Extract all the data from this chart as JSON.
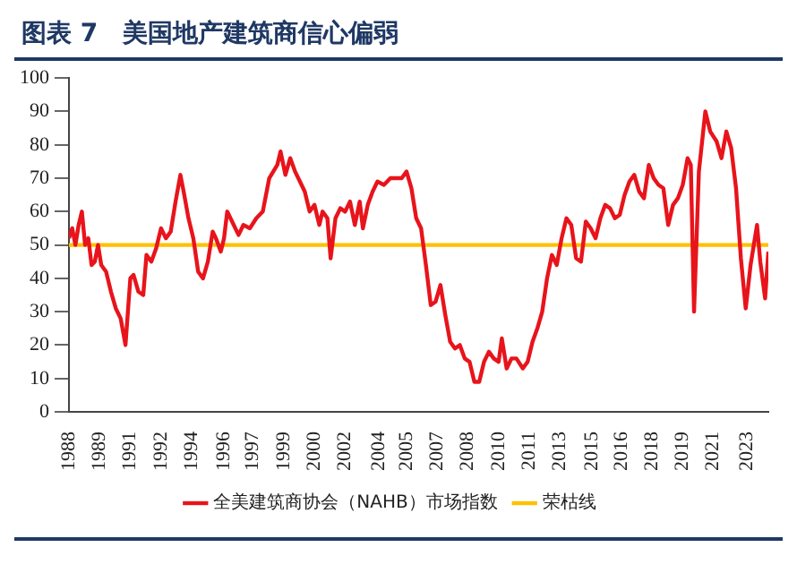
{
  "chart_data": {
    "type": "line",
    "title": "图表 7　美国地产建筑商信心偏弱",
    "x": [
      "1988-01",
      "1988-03",
      "1988-05",
      "1988-07",
      "1988-09",
      "1988-11",
      "1989-01",
      "1989-03",
      "1989-05",
      "1989-07",
      "1989-09",
      "1989-12",
      "1990-03",
      "1990-06",
      "1990-09",
      "1990-12",
      "1991-03",
      "1991-05",
      "1991-08",
      "1991-11",
      "1992-01",
      "1992-04",
      "1992-07",
      "1992-10",
      "1993-01",
      "1993-04",
      "1993-07",
      "1993-10",
      "1993-12",
      "1994-03",
      "1994-06",
      "1994-09",
      "1994-12",
      "1995-03",
      "1995-06",
      "1995-08",
      "1995-11",
      "1996-01",
      "1996-03",
      "1996-06",
      "1996-10",
      "1997-01",
      "1997-05",
      "1997-09",
      "1998-01",
      "1998-05",
      "1998-10",
      "1998-12",
      "1999-03",
      "1999-06",
      "1999-09",
      "1999-12",
      "2000-03",
      "2000-06",
      "2000-09",
      "2000-12",
      "2001-02",
      "2001-05",
      "2001-07",
      "2001-10",
      "2002-01",
      "2002-04",
      "2002-07",
      "2002-10",
      "2003-01",
      "2003-03",
      "2003-06",
      "2003-09",
      "2003-12",
      "2004-04",
      "2004-08",
      "2004-12",
      "2005-03",
      "2005-06",
      "2005-09",
      "2005-12",
      "2006-03",
      "2006-06",
      "2006-09",
      "2006-12",
      "2007-03",
      "2007-06",
      "2007-09",
      "2007-12",
      "2008-03",
      "2008-06",
      "2008-09",
      "2008-12",
      "2009-03",
      "2009-06",
      "2009-09",
      "2009-12",
      "2010-03",
      "2010-05",
      "2010-08",
      "2010-11",
      "2011-02",
      "2011-06",
      "2011-09",
      "2011-12",
      "2012-03",
      "2012-06",
      "2012-09",
      "2012-12",
      "2013-03",
      "2013-06",
      "2013-09",
      "2013-12",
      "2014-03",
      "2014-06",
      "2014-09",
      "2014-12",
      "2015-03",
      "2015-06",
      "2015-09",
      "2015-12",
      "2016-03",
      "2016-06",
      "2016-09",
      "2016-12",
      "2017-03",
      "2017-06",
      "2017-09",
      "2017-12",
      "2018-03",
      "2018-06",
      "2018-09",
      "2018-12",
      "2019-03",
      "2019-06",
      "2019-09",
      "2019-12",
      "2020-02",
      "2020-04",
      "2020-07",
      "2020-11",
      "2021-02",
      "2021-06",
      "2021-09",
      "2021-12",
      "2022-03",
      "2022-06",
      "2022-09",
      "2022-12",
      "2023-03",
      "2023-05",
      "2023-07",
      "2023-09",
      "2023-12",
      "2024-02"
    ],
    "series": [
      {
        "name": "全美建筑商协会（NAHB）市场指数",
        "color": "#e8141b",
        "values": [
          52,
          55,
          50,
          56,
          60,
          50,
          52,
          44,
          45,
          50,
          44,
          42,
          36,
          31,
          28,
          20,
          40,
          41,
          36,
          35,
          47,
          45,
          49,
          55,
          52,
          54,
          63,
          71,
          66,
          58,
          52,
          42,
          40,
          45,
          54,
          52,
          48,
          52,
          60,
          57,
          53,
          56,
          55,
          58,
          60,
          70,
          74,
          78,
          71,
          76,
          72,
          69,
          66,
          60,
          62,
          56,
          60,
          58,
          46,
          58,
          61,
          60,
          63,
          56,
          63,
          55,
          62,
          66,
          69,
          68,
          70,
          70,
          70,
          72,
          67,
          58,
          55,
          44,
          32,
          33,
          38,
          29,
          21,
          19,
          20,
          16,
          15,
          9,
          9,
          15,
          18,
          16,
          15,
          22,
          13,
          16,
          16,
          13,
          15,
          21,
          25,
          30,
          40,
          47,
          44,
          52,
          58,
          56,
          46,
          45,
          57,
          55,
          52,
          58,
          62,
          61,
          58,
          59,
          65,
          69,
          71,
          66,
          64,
          74,
          70,
          68,
          67,
          56,
          62,
          64,
          68,
          76,
          74,
          30,
          72,
          90,
          84,
          81,
          76,
          84,
          79,
          67,
          46,
          31,
          44,
          50,
          56,
          45,
          34,
          48
        ]
      }
    ],
    "ref_lines": [
      {
        "axis": "y",
        "value": 50,
        "label": "荣枯线",
        "color": "#ffc000"
      }
    ],
    "xlim": [
      "1988-01",
      "2024-02"
    ],
    "xticks": [
      {
        "value": "1988-01",
        "label": "1988"
      },
      {
        "value": "1989-08",
        "label": "1989"
      },
      {
        "value": "1991-03",
        "label": "1991"
      },
      {
        "value": "1992-10",
        "label": "1992"
      },
      {
        "value": "1994-05",
        "label": "1994"
      },
      {
        "value": "1996-01",
        "label": "1996"
      },
      {
        "value": "1997-07",
        "label": "1997"
      },
      {
        "value": "1999-02",
        "label": "1999"
      },
      {
        "value": "2000-09",
        "label": "2000"
      },
      {
        "value": "2002-04",
        "label": "2002"
      },
      {
        "value": "2004-01",
        "label": "2004"
      },
      {
        "value": "2005-06",
        "label": "2005"
      },
      {
        "value": "2007-01",
        "label": "2007"
      },
      {
        "value": "2008-08",
        "label": "2008"
      },
      {
        "value": "2010-03",
        "label": "2010"
      },
      {
        "value": "2011-10",
        "label": "2011"
      },
      {
        "value": "2013-05",
        "label": "2013"
      },
      {
        "value": "2015-01",
        "label": "2015"
      },
      {
        "value": "2016-07",
        "label": "2016"
      },
      {
        "value": "2018-02",
        "label": "2018"
      },
      {
        "value": "2019-09",
        "label": "2019"
      },
      {
        "value": "2021-04",
        "label": "2021"
      },
      {
        "value": "2023-01",
        "label": "2023"
      }
    ],
    "ylim": [
      0,
      100
    ],
    "yticks": [
      0,
      10,
      20,
      30,
      40,
      50,
      60,
      70,
      80,
      90,
      100
    ],
    "grid": false,
    "legend": "bottom",
    "marker": "none",
    "line_style": "solid"
  }
}
